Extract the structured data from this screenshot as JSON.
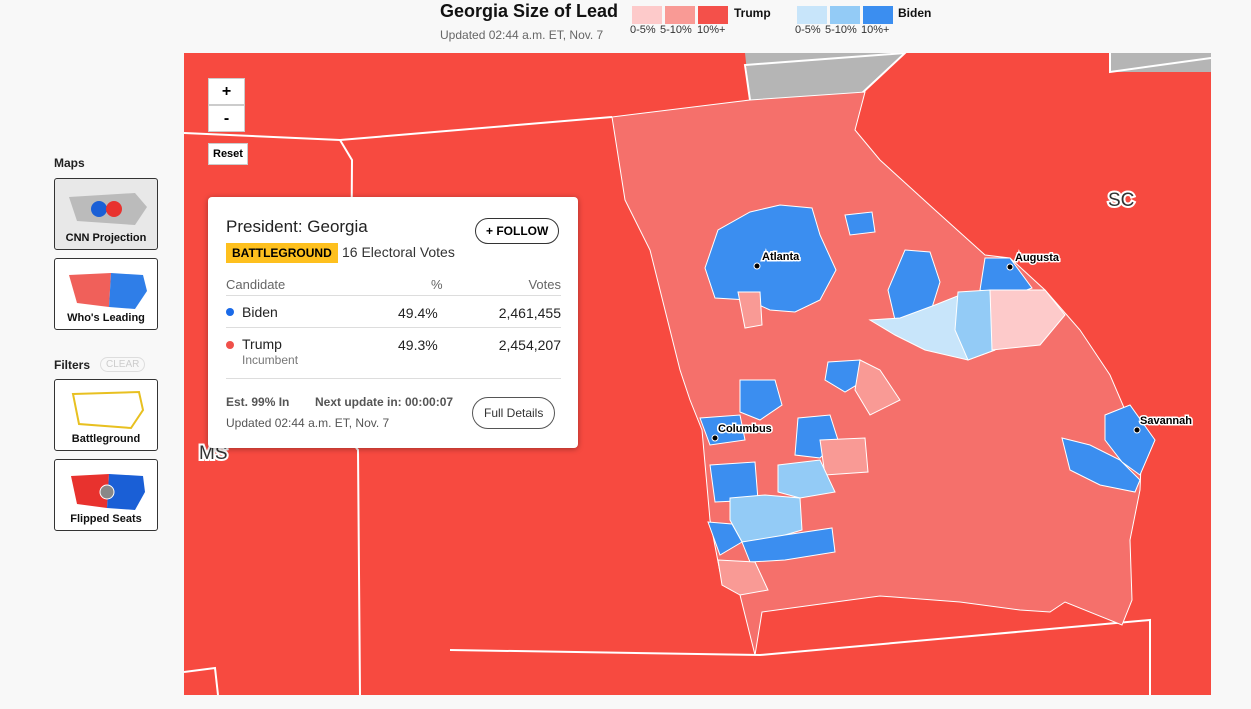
{
  "header": {
    "title": "Georgia Size of Lead",
    "updated": "Updated 02:44 a.m. ET, Nov. 7"
  },
  "legend": {
    "trump": {
      "name": "Trump",
      "bins": [
        "0-5%",
        "5-10%",
        "10%+"
      ]
    },
    "biden": {
      "name": "Biden",
      "bins": [
        "0-5%",
        "5-10%",
        "10%+"
      ]
    }
  },
  "sidebar": {
    "maps_label": "Maps",
    "maps": [
      "CNN Projection",
      "Who's Leading"
    ],
    "filters_label": "Filters",
    "clear": "CLEAR",
    "filters": [
      "Battleground",
      "Flipped Seats"
    ]
  },
  "zoom": {
    "in": "+",
    "out": "-",
    "reset": "Reset"
  },
  "map": {
    "cities": [
      "Atlanta",
      "Augusta",
      "Columbus",
      "Savannah"
    ],
    "states": [
      "SC",
      "MS"
    ]
  },
  "popup": {
    "title": "President: Georgia",
    "follow": "+ FOLLOW",
    "badge": "BATTLEGROUND",
    "electoral": "16 Electoral Votes",
    "columns": [
      "Candidate",
      "%",
      "Votes"
    ],
    "rows": [
      {
        "name": "Biden",
        "pct": "49.4%",
        "votes": "2,461,455"
      },
      {
        "name": "Trump",
        "note": "Incumbent",
        "pct": "49.3%",
        "votes": "2,454,207"
      }
    ],
    "est": "Est. 99% In",
    "next": "Next update in: 00:00:07",
    "details": "Full Details",
    "updated": "Updated 02:44 a.m. ET, Nov. 7"
  }
}
